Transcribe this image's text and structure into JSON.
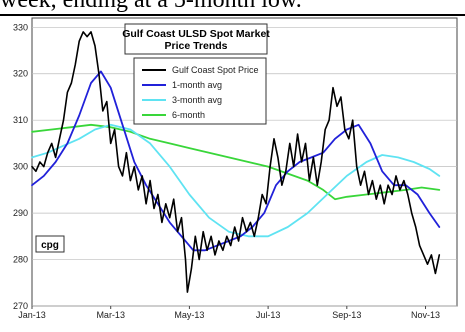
{
  "page": {
    "header_fragment": "week, ending at a 5-month low."
  },
  "chart_data": {
    "type": "line",
    "title": "Gulf Coast ULSD Spot Market",
    "subtitle": "Price Trends",
    "unit_label": "cpg",
    "ylim": [
      270,
      332
    ],
    "yticks": [
      270,
      280,
      290,
      300,
      310,
      320,
      330
    ],
    "xlim": [
      0,
      10.8
    ],
    "xticks": [
      {
        "x": 0,
        "label": "Jan-13"
      },
      {
        "x": 2,
        "label": "Mar-13"
      },
      {
        "x": 4,
        "label": "May-13"
      },
      {
        "x": 6,
        "label": "Jul-13"
      },
      {
        "x": 8,
        "label": "Sep-13"
      },
      {
        "x": 10,
        "label": "Nov-13"
      }
    ],
    "grid": true,
    "legend_position": "top-center",
    "series": [
      {
        "name": "Gulf Coast Spot Price",
        "color": "#000000",
        "points": [
          [
            0.0,
            300
          ],
          [
            0.1,
            299
          ],
          [
            0.2,
            301
          ],
          [
            0.3,
            300
          ],
          [
            0.4,
            303
          ],
          [
            0.5,
            305
          ],
          [
            0.6,
            302
          ],
          [
            0.7,
            306
          ],
          [
            0.8,
            310
          ],
          [
            0.9,
            316
          ],
          [
            1.0,
            318
          ],
          [
            1.1,
            322
          ],
          [
            1.2,
            327
          ],
          [
            1.3,
            329
          ],
          [
            1.4,
            328
          ],
          [
            1.5,
            329
          ],
          [
            1.6,
            326
          ],
          [
            1.7,
            320
          ],
          [
            1.8,
            312
          ],
          [
            1.9,
            314
          ],
          [
            2.0,
            305
          ],
          [
            2.1,
            308
          ],
          [
            2.2,
            300
          ],
          [
            2.3,
            298
          ],
          [
            2.4,
            303
          ],
          [
            2.5,
            297
          ],
          [
            2.6,
            300
          ],
          [
            2.7,
            295
          ],
          [
            2.8,
            298
          ],
          [
            2.9,
            292
          ],
          [
            3.0,
            297
          ],
          [
            3.1,
            291
          ],
          [
            3.2,
            294
          ],
          [
            3.3,
            288
          ],
          [
            3.4,
            292
          ],
          [
            3.5,
            289
          ],
          [
            3.6,
            293
          ],
          [
            3.7,
            286
          ],
          [
            3.8,
            289
          ],
          [
            3.9,
            280
          ],
          [
            3.95,
            273
          ],
          [
            4.05,
            278
          ],
          [
            4.15,
            285
          ],
          [
            4.25,
            280
          ],
          [
            4.35,
            286
          ],
          [
            4.45,
            282
          ],
          [
            4.55,
            285
          ],
          [
            4.65,
            281
          ],
          [
            4.75,
            284
          ],
          [
            4.85,
            282
          ],
          [
            4.95,
            285
          ],
          [
            5.05,
            283
          ],
          [
            5.15,
            287
          ],
          [
            5.25,
            284
          ],
          [
            5.35,
            289
          ],
          [
            5.45,
            286
          ],
          [
            5.55,
            288
          ],
          [
            5.65,
            285
          ],
          [
            5.75,
            289
          ],
          [
            5.85,
            294
          ],
          [
            5.95,
            292
          ],
          [
            6.05,
            300
          ],
          [
            6.15,
            306
          ],
          [
            6.25,
            302
          ],
          [
            6.35,
            296
          ],
          [
            6.45,
            299
          ],
          [
            6.55,
            305
          ],
          [
            6.65,
            300
          ],
          [
            6.75,
            307
          ],
          [
            6.85,
            301
          ],
          [
            6.95,
            305
          ],
          [
            7.05,
            297
          ],
          [
            7.15,
            302
          ],
          [
            7.25,
            296
          ],
          [
            7.35,
            301
          ],
          [
            7.45,
            308
          ],
          [
            7.55,
            310
          ],
          [
            7.65,
            317
          ],
          [
            7.75,
            313
          ],
          [
            7.85,
            315
          ],
          [
            7.95,
            308
          ],
          [
            8.05,
            306
          ],
          [
            8.15,
            310
          ],
          [
            8.25,
            300
          ],
          [
            8.35,
            296
          ],
          [
            8.45,
            299
          ],
          [
            8.55,
            294
          ],
          [
            8.65,
            297
          ],
          [
            8.75,
            293
          ],
          [
            8.85,
            296
          ],
          [
            8.95,
            292
          ],
          [
            9.05,
            296
          ],
          [
            9.15,
            294
          ],
          [
            9.25,
            298
          ],
          [
            9.35,
            295
          ],
          [
            9.45,
            297
          ],
          [
            9.55,
            294
          ],
          [
            9.65,
            290
          ],
          [
            9.75,
            287
          ],
          [
            9.85,
            283
          ],
          [
            9.95,
            281
          ],
          [
            10.05,
            279
          ],
          [
            10.15,
            281
          ],
          [
            10.25,
            277
          ],
          [
            10.35,
            281
          ]
        ]
      },
      {
        "name": "1-month avg",
        "color": "#2121d9",
        "points": [
          [
            0.0,
            296
          ],
          [
            0.3,
            298
          ],
          [
            0.6,
            301
          ],
          [
            0.9,
            305
          ],
          [
            1.2,
            311
          ],
          [
            1.5,
            318
          ],
          [
            1.75,
            320.5
          ],
          [
            2.0,
            317
          ],
          [
            2.3,
            309
          ],
          [
            2.6,
            301
          ],
          [
            2.9,
            296
          ],
          [
            3.2,
            292
          ],
          [
            3.5,
            288
          ],
          [
            3.8,
            285
          ],
          [
            4.1,
            282
          ],
          [
            4.4,
            282
          ],
          [
            4.7,
            283
          ],
          [
            5.0,
            284
          ],
          [
            5.3,
            285
          ],
          [
            5.6,
            287
          ],
          [
            5.9,
            290
          ],
          [
            6.2,
            296
          ],
          [
            6.5,
            299
          ],
          [
            6.8,
            301
          ],
          [
            7.1,
            302
          ],
          [
            7.4,
            303
          ],
          [
            7.7,
            306
          ],
          [
            8.0,
            308
          ],
          [
            8.3,
            309
          ],
          [
            8.6,
            305
          ],
          [
            8.9,
            299
          ],
          [
            9.2,
            296
          ],
          [
            9.5,
            296
          ],
          [
            9.8,
            294
          ],
          [
            10.1,
            290
          ],
          [
            10.35,
            287
          ]
        ]
      },
      {
        "name": "3-month avg",
        "color": "#5fe3f2",
        "points": [
          [
            0.0,
            302
          ],
          [
            0.4,
            303
          ],
          [
            0.8,
            304.5
          ],
          [
            1.2,
            306
          ],
          [
            1.6,
            308
          ],
          [
            2.0,
            309
          ],
          [
            2.5,
            308
          ],
          [
            3.0,
            305
          ],
          [
            3.5,
            300
          ],
          [
            4.0,
            294
          ],
          [
            4.5,
            289
          ],
          [
            5.0,
            286
          ],
          [
            5.5,
            285
          ],
          [
            6.0,
            285
          ],
          [
            6.5,
            287
          ],
          [
            7.0,
            290
          ],
          [
            7.5,
            294
          ],
          [
            8.0,
            298
          ],
          [
            8.5,
            301
          ],
          [
            8.9,
            302.5
          ],
          [
            9.3,
            302
          ],
          [
            9.7,
            301
          ],
          [
            10.1,
            299.5
          ],
          [
            10.35,
            298
          ]
        ]
      },
      {
        "name": "6-month",
        "color": "#39d63a",
        "points": [
          [
            0.0,
            307.5
          ],
          [
            0.5,
            308
          ],
          [
            1.0,
            308.5
          ],
          [
            1.5,
            309
          ],
          [
            2.0,
            308.5
          ],
          [
            2.5,
            307.5
          ],
          [
            3.0,
            306
          ],
          [
            3.5,
            305
          ],
          [
            4.0,
            304
          ],
          [
            4.5,
            303
          ],
          [
            5.0,
            302
          ],
          [
            5.5,
            301
          ],
          [
            6.0,
            300
          ],
          [
            6.5,
            298.5
          ],
          [
            7.0,
            297
          ],
          [
            7.4,
            295
          ],
          [
            7.7,
            293
          ],
          [
            8.0,
            293.5
          ],
          [
            8.5,
            294
          ],
          [
            9.0,
            294.5
          ],
          [
            9.5,
            295
          ],
          [
            9.9,
            295.5
          ],
          [
            10.35,
            295
          ]
        ]
      }
    ]
  }
}
